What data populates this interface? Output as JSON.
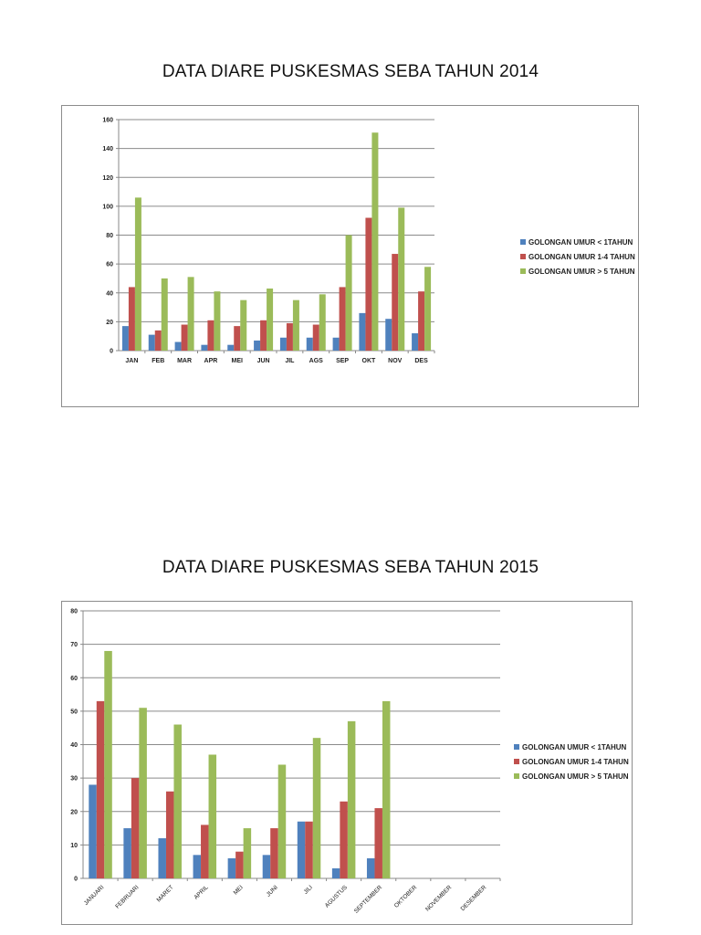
{
  "chart_data": [
    {
      "type": "bar",
      "title": "DATA DIARE PUSKESMAS SEBA TAHUN 2014",
      "xlabel": "",
      "ylabel": "",
      "ylim": [
        0,
        160
      ],
      "yticks": [
        0,
        20,
        40,
        60,
        80,
        100,
        120,
        140,
        160
      ],
      "grid": true,
      "legend_position": "right",
      "categories": [
        "JAN",
        "FEB",
        "MAR",
        "APR",
        "MEI",
        "JUN",
        "JIL",
        "AGS",
        "SEP",
        "OKT",
        "NOV",
        "DES"
      ],
      "series": [
        {
          "name": "GOLONGAN UMUR < 1TAHUN",
          "color": "#4f81bd",
          "values": [
            17,
            11,
            6,
            4,
            4,
            7,
            9,
            9,
            9,
            26,
            22,
            12
          ]
        },
        {
          "name": "GOLONGAN UMUR 1-4 TAHUN",
          "color": "#c0504d",
          "values": [
            44,
            14,
            18,
            21,
            17,
            21,
            19,
            18,
            44,
            92,
            67,
            41
          ]
        },
        {
          "name": "GOLONGAN UMUR > 5 TAHUN",
          "color": "#9bbb59",
          "values": [
            106,
            50,
            51,
            41,
            35,
            43,
            35,
            39,
            80,
            151,
            99,
            58
          ]
        }
      ]
    },
    {
      "type": "bar",
      "title": "DATA DIARE PUSKESMAS SEBA TAHUN 2015",
      "xlabel": "",
      "ylabel": "",
      "ylim": [
        0,
        80
      ],
      "yticks": [
        0,
        10,
        20,
        30,
        40,
        50,
        60,
        70,
        80
      ],
      "grid": true,
      "legend_position": "right",
      "categories": [
        "JANUARI",
        "FEBRUARI",
        "MARET",
        "APRIL",
        "MEI",
        "JUNI",
        "JILI",
        "AGUSTUS",
        "SEPTEMBER",
        "OKTOBER",
        "NOVEMBER",
        "DESEMBER"
      ],
      "series": [
        {
          "name": "GOLONGAN UMUR < 1TAHUN",
          "color": "#4f81bd",
          "values": [
            28,
            15,
            12,
            7,
            6,
            7,
            17,
            3,
            6,
            null,
            null,
            null
          ]
        },
        {
          "name": "GOLONGAN UMUR 1-4 TAHUN",
          "color": "#c0504d",
          "values": [
            53,
            30,
            26,
            16,
            8,
            15,
            17,
            23,
            21,
            null,
            null,
            null
          ]
        },
        {
          "name": "GOLONGAN UMUR > 5 TAHUN",
          "color": "#9bbb59",
          "values": [
            68,
            51,
            46,
            37,
            15,
            34,
            42,
            47,
            53,
            null,
            null,
            null
          ]
        }
      ]
    }
  ],
  "page": {
    "title_2014": "DATA DIARE PUSKESMAS SEBA TAHUN 2014",
    "title_2015": "DATA DIARE PUSKESMAS SEBA TAHUN 2015"
  },
  "legend": {
    "item0": "GOLONGAN UMUR < 1TAHUN",
    "item1": "GOLONGAN UMUR 1-4 TAHUN",
    "item2": "GOLONGAN UMUR > 5 TAHUN"
  }
}
